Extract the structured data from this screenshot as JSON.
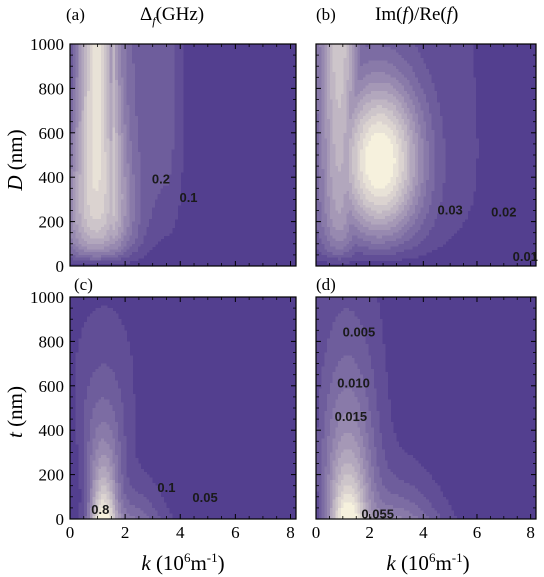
{
  "colors": {
    "low": "#533f8f",
    "high": "#f6f1dd",
    "contour_line": "#3c3c4a",
    "axis": "#000000"
  },
  "shared_axes": {
    "xlabel_var": "k",
    "xlabel_unit_left": "(10",
    "xlabel_unit_sup1": "6",
    "xlabel_unit_mid": "m",
    "xlabel_unit_sup2": "-1",
    "xlabel_unit_right": ")",
    "top_ylabel_var": "D",
    "top_ylabel_unit": "(nm)",
    "bottom_ylabel_var": "t",
    "bottom_ylabel_unit": "(nm)"
  },
  "chart_data": [
    {
      "id": "a",
      "type": "heatmap",
      "panel_label": "(a)",
      "title_main": "Δ",
      "title_sub": "f",
      "title_rest": "(GHz)",
      "xlim": [
        0,
        8.2
      ],
      "ylim": [
        0,
        1000
      ],
      "xticks": [
        "0",
        "2",
        "4",
        "6",
        "8"
      ],
      "yticks": [
        "0",
        "200",
        "400",
        "600",
        "800",
        "1000"
      ],
      "contour_labels": [
        {
          "text": "0.2",
          "x": 3.3,
          "y": 395
        },
        {
          "text": "0.1",
          "x": 4.3,
          "y": 310
        }
      ]
    },
    {
      "id": "b",
      "type": "heatmap",
      "panel_label": "(b)",
      "title_main": "Im(",
      "title_f1": "f",
      "title_mid": ")/Re(",
      "title_f2": "f",
      "title_end": ")",
      "xlim": [
        0,
        8.2
      ],
      "ylim": [
        0,
        1000
      ],
      "xticks": [
        "0",
        "2",
        "4",
        "6",
        "8"
      ],
      "yticks": [
        "0",
        "200",
        "400",
        "600",
        "800",
        "1000"
      ],
      "contour_labels": [
        {
          "text": "0.03",
          "x": 5.0,
          "y": 255
        },
        {
          "text": "0.02",
          "x": 7.0,
          "y": 245
        },
        {
          "text": "0.01",
          "x": 7.8,
          "y": 45
        }
      ]
    },
    {
      "id": "c",
      "type": "heatmap",
      "panel_label": "(c)",
      "xlim": [
        0,
        8.2
      ],
      "ylim": [
        0,
        1000
      ],
      "xticks": [
        "0",
        "2",
        "4",
        "6",
        "8"
      ],
      "yticks": [
        "0",
        "200",
        "400",
        "600",
        "800",
        "1000"
      ],
      "contour_labels": [
        {
          "text": "0.8",
          "x": 1.1,
          "y": 45
        },
        {
          "text": "0.1",
          "x": 3.5,
          "y": 145
        },
        {
          "text": "0.05",
          "x": 4.9,
          "y": 100
        }
      ]
    },
    {
      "id": "d",
      "type": "heatmap",
      "panel_label": "(d)",
      "xlim": [
        0,
        8.2
      ],
      "ylim": [
        0,
        1000
      ],
      "xticks": [
        "0",
        "2",
        "4",
        "6",
        "8"
      ],
      "yticks": [
        "0",
        "200",
        "400",
        "600",
        "800",
        "1000"
      ],
      "contour_labels": [
        {
          "text": "0.005",
          "x": 1.6,
          "y": 845
        },
        {
          "text": "0.010",
          "x": 1.4,
          "y": 615
        },
        {
          "text": "0.015",
          "x": 1.3,
          "y": 465
        },
        {
          "text": "0.055",
          "x": 2.3,
          "y": 25
        }
      ]
    }
  ]
}
